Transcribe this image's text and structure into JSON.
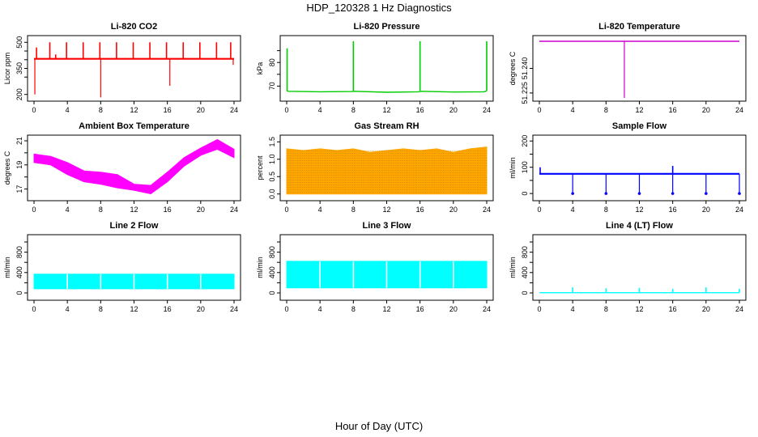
{
  "figure": {
    "title": "HDP_120328  1 Hz Diagnostics",
    "xlabel": "Hour of Day (UTC)"
  },
  "colors": {
    "co2": "#ff0000",
    "pressure": "#00cc00",
    "temperature": "#cc00cc",
    "box_temp": "#ff00ff",
    "gas_rh_fill": "#ffa500",
    "gas_rh_dots": "#b8860b",
    "sample_flow": "#0000ff",
    "line_flow": "#00ffff"
  },
  "chart_data": [
    {
      "id": "co2",
      "type": "line",
      "title": "Li-820 CO2",
      "ylabel": "Licor ppm",
      "xlim": [
        0,
        24
      ],
      "ylim": [
        180,
        520
      ],
      "yticks": [
        200,
        300,
        350,
        400,
        450,
        500
      ],
      "ytick_labels": [
        "200",
        "",
        "350",
        "",
        "",
        "500"
      ],
      "xticks": [
        0,
        4,
        8,
        12,
        16,
        20,
        24
      ],
      "baseline": 405,
      "series": [
        {
          "x": [
            0,
            24
          ],
          "y": [
            405,
            405
          ]
        }
      ],
      "spikes_up": [
        {
          "x": 0.3,
          "y": 470
        },
        {
          "x": 1.9,
          "y": 500
        },
        {
          "x": 2.6,
          "y": 430
        },
        {
          "x": 3.9,
          "y": 500
        },
        {
          "x": 5.9,
          "y": 500
        },
        {
          "x": 7.9,
          "y": 500
        },
        {
          "x": 9.9,
          "y": 500
        },
        {
          "x": 11.9,
          "y": 500
        },
        {
          "x": 13.9,
          "y": 500
        },
        {
          "x": 15.9,
          "y": 500
        },
        {
          "x": 17.9,
          "y": 500
        },
        {
          "x": 19.9,
          "y": 500
        },
        {
          "x": 21.9,
          "y": 500
        },
        {
          "x": 23.6,
          "y": 500
        }
      ],
      "spikes_down": [
        {
          "x": 0.1,
          "y": 200
        },
        {
          "x": 8.0,
          "y": 183
        },
        {
          "x": 16.3,
          "y": 250
        },
        {
          "x": 23.9,
          "y": 370
        }
      ]
    },
    {
      "id": "pressure",
      "type": "line",
      "title": "Li-820 Pressure",
      "ylabel": "kPa",
      "xlim": [
        0,
        24
      ],
      "ylim": [
        65,
        90
      ],
      "yticks": [
        70,
        75,
        80,
        85
      ],
      "ytick_labels": [
        "70",
        "",
        "80",
        ""
      ],
      "xticks": [
        0,
        4,
        8,
        12,
        16,
        20,
        24
      ],
      "series": [
        {
          "x": [
            0,
            0.2,
            4,
            7.8,
            8.2,
            12,
            15.8,
            16.2,
            20,
            23.7,
            24
          ],
          "y": [
            68,
            67.8,
            67.6,
            67.7,
            67.8,
            67.4,
            67.6,
            67.8,
            67.5,
            67.6,
            68
          ]
        }
      ],
      "spikes_up": [
        {
          "x": 0.05,
          "y": 86
        },
        {
          "x": 8.0,
          "y": 89
        },
        {
          "x": 16.0,
          "y": 89
        },
        {
          "x": 24.0,
          "y": 89
        }
      ]
    },
    {
      "id": "temperature",
      "type": "line",
      "title": "Li-820 Temperature",
      "ylabel": "degrees C",
      "xlim": [
        0,
        24
      ],
      "ylim": [
        51.222,
        51.258
      ],
      "yticks": [
        51.225,
        51.24
      ],
      "ytick_labels": [
        "51.225",
        "51.240"
      ],
      "xticks": [
        0,
        4,
        8,
        12,
        16,
        20,
        24
      ],
      "series": [
        {
          "x": [
            0,
            24
          ],
          "y": [
            51.2565,
            51.2565
          ]
        }
      ],
      "spikes_down": [
        {
          "x": 10.2,
          "y": 51.222
        }
      ]
    },
    {
      "id": "box_temp",
      "type": "area",
      "title": "Ambient Box Temperature",
      "ylabel": "degrees C",
      "xlim": [
        0,
        24
      ],
      "ylim": [
        16.3,
        21.2
      ],
      "yticks": [
        17,
        18,
        19,
        20,
        21
      ],
      "ytick_labels": [
        "17",
        "",
        "19",
        "",
        "21"
      ],
      "xticks": [
        0,
        4,
        8,
        12,
        16,
        20,
        24
      ],
      "x": [
        0,
        2,
        4,
        6,
        8,
        10,
        12,
        14,
        16,
        18,
        20,
        22,
        24
      ],
      "upper": [
        19.9,
        19.7,
        19.2,
        18.5,
        18.4,
        18.2,
        17.4,
        17.3,
        18.4,
        19.6,
        20.4,
        21.1,
        20.3
      ],
      "lower": [
        19.2,
        19.0,
        18.2,
        17.6,
        17.4,
        17.1,
        16.9,
        16.6,
        17.6,
        18.9,
        19.8,
        20.3,
        19.6
      ]
    },
    {
      "id": "gas_rh",
      "type": "area",
      "title": "Gas Stream RH",
      "ylabel": "percent",
      "xlim": [
        0,
        24
      ],
      "ylim": [
        -0.1,
        1.6
      ],
      "yticks": [
        0,
        0.5,
        1.0,
        1.5
      ],
      "ytick_labels": [
        "0.0",
        "0.5",
        "1.0",
        "1.5"
      ],
      "xticks": [
        0,
        4,
        8,
        12,
        16,
        20,
        24
      ],
      "x": [
        0,
        2,
        4,
        6,
        8,
        10,
        12,
        14,
        16,
        18,
        20,
        22,
        24
      ],
      "upper": [
        1.3,
        1.25,
        1.3,
        1.25,
        1.3,
        1.2,
        1.25,
        1.3,
        1.25,
        1.3,
        1.2,
        1.3,
        1.35
      ],
      "lower": [
        0.0,
        0.0,
        0.0,
        0.0,
        0.0,
        0.0,
        0.0,
        0.0,
        0.0,
        0.0,
        0.0,
        0.0,
        0.0
      ]
    },
    {
      "id": "sample_flow",
      "type": "line",
      "title": "Sample Flow",
      "ylabel": "ml/min",
      "xlim": [
        0,
        24
      ],
      "ylim": [
        -15,
        210
      ],
      "yticks": [
        0,
        50,
        100,
        150,
        200
      ],
      "ytick_labels": [
        "0",
        "",
        "100",
        "",
        "200"
      ],
      "xticks": [
        0,
        4,
        8,
        12,
        16,
        20,
        24
      ],
      "series": [
        {
          "x": [
            0,
            24
          ],
          "y": [
            75,
            75
          ]
        }
      ],
      "spikes_up": [
        {
          "x": 0.1,
          "y": 100
        },
        {
          "x": 16.0,
          "y": 105
        }
      ],
      "spikes_down": [
        {
          "x": 4.0,
          "y": 0
        },
        {
          "x": 8.0,
          "y": 0
        },
        {
          "x": 12.0,
          "y": 0
        },
        {
          "x": 16.0,
          "y": 0
        },
        {
          "x": 20.0,
          "y": 0
        },
        {
          "x": 24.0,
          "y": 0
        }
      ]
    },
    {
      "id": "line2_flow",
      "type": "area",
      "title": "Line 2 Flow",
      "ylabel": "ml/min",
      "xlim": [
        0,
        24
      ],
      "ylim": [
        -80,
        1080
      ],
      "yticks": [
        0,
        200,
        400,
        600,
        800,
        1000
      ],
      "ytick_labels": [
        "0",
        "",
        "400",
        "",
        "800",
        ""
      ],
      "xticks": [
        0,
        4,
        8,
        12,
        16,
        20,
        24
      ],
      "x": [
        0,
        24
      ],
      "upper": [
        370,
        370
      ],
      "lower": [
        80,
        80
      ],
      "gaps": [
        4,
        8,
        12,
        16,
        20
      ]
    },
    {
      "id": "line3_flow",
      "type": "area",
      "title": "Line 3 Flow",
      "ylabel": "ml/min",
      "xlim": [
        0,
        24
      ],
      "ylim": [
        -80,
        1080
      ],
      "yticks": [
        0,
        200,
        400,
        600,
        800,
        1000
      ],
      "ytick_labels": [
        "0",
        "",
        "400",
        "",
        "800",
        ""
      ],
      "xticks": [
        0,
        4,
        8,
        12,
        16,
        20,
        24
      ],
      "x": [
        0,
        24
      ],
      "upper": [
        620,
        620
      ],
      "lower": [
        100,
        100
      ],
      "gaps": [
        4,
        8,
        12,
        16,
        20
      ]
    },
    {
      "id": "line4_flow",
      "type": "line",
      "title": "Line 4 (LT) Flow",
      "ylabel": "ml/min",
      "xlim": [
        0,
        24
      ],
      "ylim": [
        -80,
        1080
      ],
      "yticks": [
        0,
        200,
        400,
        600,
        800,
        1000
      ],
      "ytick_labels": [
        "0",
        "",
        "400",
        "",
        "800",
        ""
      ],
      "xticks": [
        0,
        4,
        8,
        12,
        16,
        20,
        24
      ],
      "series": [
        {
          "x": [
            0,
            24
          ],
          "y": [
            5,
            5
          ]
        }
      ],
      "spikes_up": [
        {
          "x": 4.0,
          "y": 110
        },
        {
          "x": 8.0,
          "y": 90
        },
        {
          "x": 12.0,
          "y": 100
        },
        {
          "x": 16.0,
          "y": 80
        },
        {
          "x": 20.0,
          "y": 110
        },
        {
          "x": 24.0,
          "y": 80
        }
      ]
    }
  ]
}
